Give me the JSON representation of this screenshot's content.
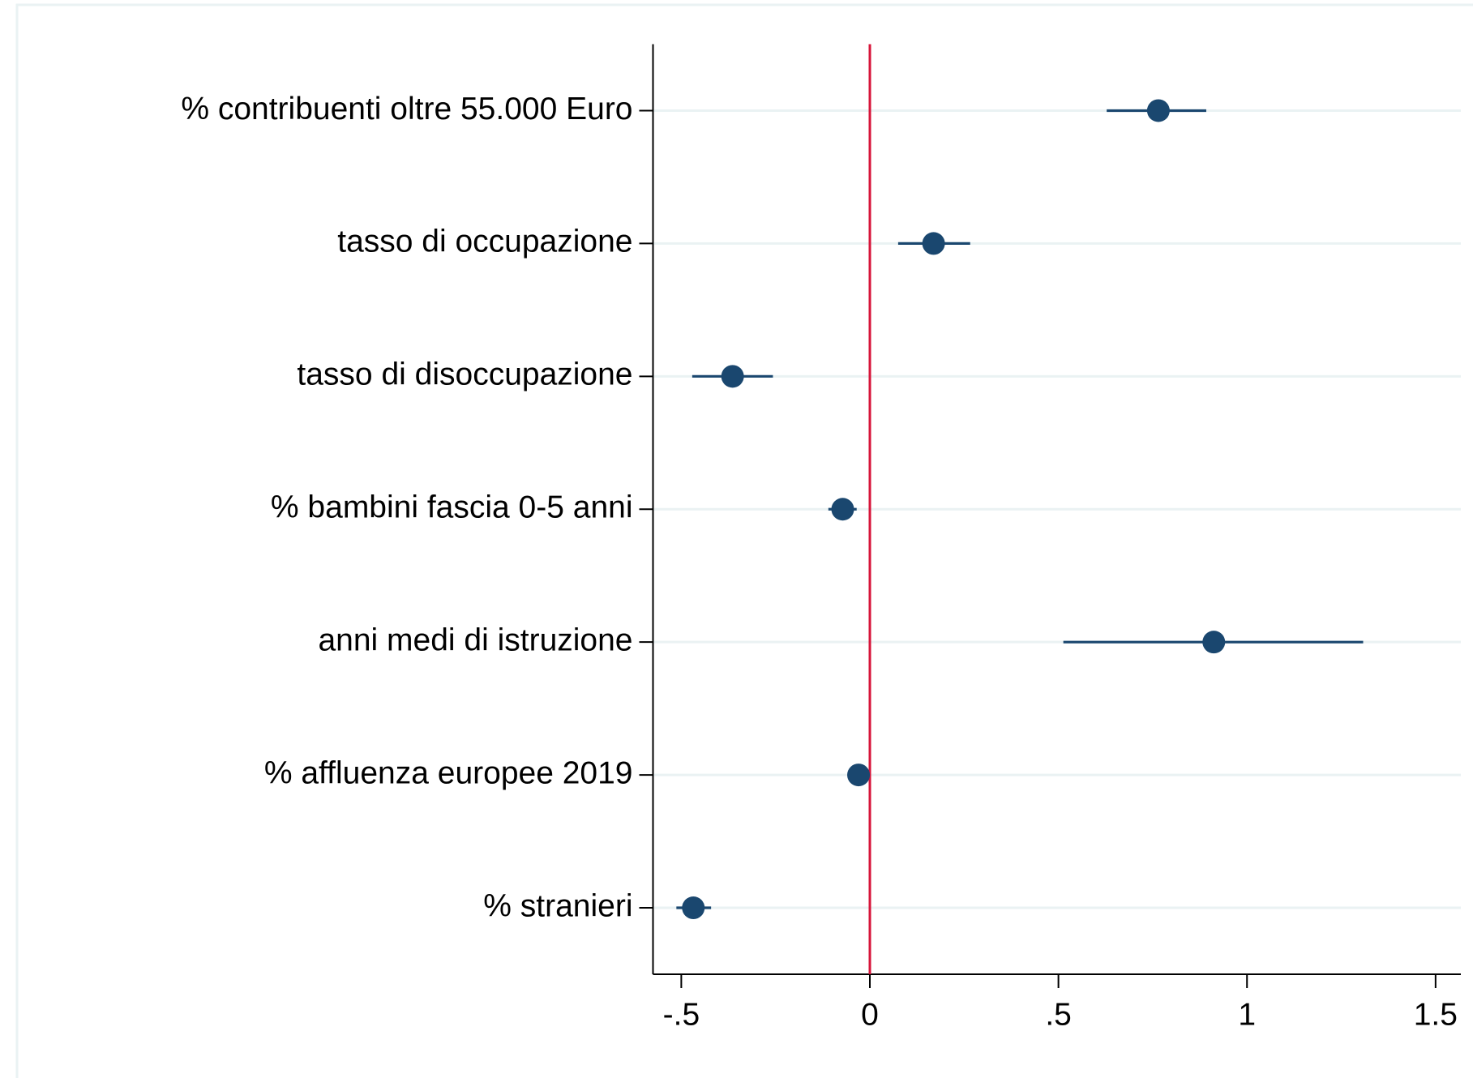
{
  "chart_data": {
    "type": "coefplot",
    "categories": [
      "% contribuenti oltre 55.000 Euro",
      "tasso di occupazione",
      "tasso di disoccupazione",
      "% bambini fascia 0-5 anni",
      "anni medi di istruzione",
      "% affluenza europee 2019",
      "% stranieri"
    ],
    "series": [
      {
        "color": "#1a476f",
        "values": [
          0.765,
          0.169,
          -0.364,
          -0.072,
          0.912,
          -0.03,
          -0.468
        ],
        "lower": [
          0.628,
          0.075,
          -0.471,
          -0.11,
          0.513,
          -0.04,
          -0.513
        ],
        "upper": [
          0.892,
          0.266,
          -0.257,
          -0.035,
          1.308,
          -0.02,
          -0.421
        ]
      }
    ],
    "xlim": [
      -0.575,
      1.567
    ],
    "xticks": [
      {
        "value": -0.5,
        "label": "-.5"
      },
      0,
      {
        "value": 0.5,
        "label": ".5"
      },
      1,
      1.5
    ],
    "refline": 0,
    "refline_color": "#d7153a",
    "grid": true
  }
}
